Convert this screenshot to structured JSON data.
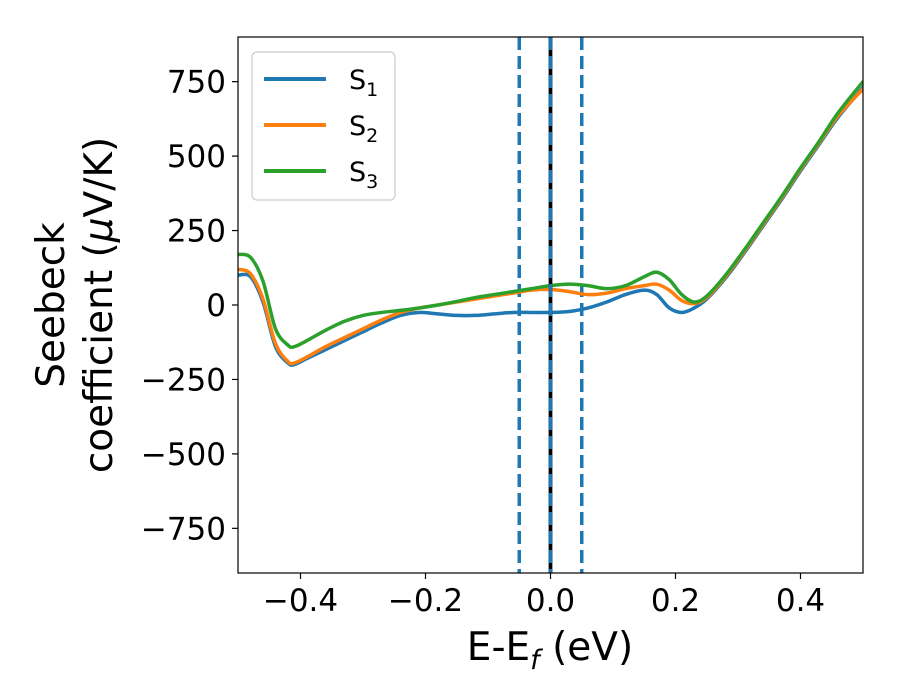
{
  "chart_data": {
    "type": "line",
    "xlabel": "E-E",
    "xlabel_subscript": "f",
    "xlabel_unit": " (eV)",
    "ylabel_line1": "Seebeck",
    "ylabel_line2_prefix": "coefficient  (",
    "ylabel_mu": "μ",
    "ylabel_line2_suffix": "V/K)",
    "xlim": [
      -0.5,
      0.5
    ],
    "ylim": [
      -900,
      900
    ],
    "xticks": [
      -0.4,
      -0.2,
      0.0,
      0.2,
      0.4
    ],
    "xtick_labels": [
      "−0.4",
      "−0.2",
      "0.0",
      "0.2",
      "0.4"
    ],
    "yticks": [
      750,
      500,
      250,
      0,
      -250,
      -500,
      -750
    ],
    "ytick_labels": [
      "750",
      "500",
      "250",
      "0",
      "−250",
      "−500",
      "−750"
    ],
    "grid": false,
    "legend_position": "top-left",
    "series": [
      {
        "name": "S",
        "subscript": "1",
        "color": "#1f77b4",
        "x": [
          -0.5,
          -0.48,
          -0.46,
          -0.44,
          -0.42,
          -0.41,
          -0.39,
          -0.36,
          -0.33,
          -0.3,
          -0.27,
          -0.24,
          -0.21,
          -0.18,
          -0.15,
          -0.12,
          -0.09,
          -0.06,
          -0.03,
          0.0,
          0.03,
          0.06,
          0.09,
          0.12,
          0.15,
          0.17,
          0.19,
          0.21,
          0.23,
          0.25,
          0.28,
          0.31,
          0.34,
          0.37,
          0.4,
          0.43,
          0.46,
          0.5
        ],
        "y": [
          100,
          95,
          10,
          -140,
          -195,
          -200,
          -180,
          -150,
          -120,
          -90,
          -60,
          -35,
          -25,
          -30,
          -35,
          -35,
          -30,
          -25,
          -25,
          -25,
          -22,
          -10,
          10,
          35,
          50,
          35,
          -10,
          -25,
          -10,
          20,
          90,
          175,
          265,
          355,
          450,
          540,
          630,
          730
        ]
      },
      {
        "name": "S",
        "subscript": "2",
        "color": "#ff7f0e",
        "x": [
          -0.5,
          -0.48,
          -0.46,
          -0.44,
          -0.42,
          -0.41,
          -0.39,
          -0.36,
          -0.33,
          -0.3,
          -0.27,
          -0.24,
          -0.21,
          -0.18,
          -0.15,
          -0.12,
          -0.09,
          -0.06,
          -0.03,
          0.0,
          0.03,
          0.06,
          0.09,
          0.12,
          0.15,
          0.17,
          0.19,
          0.21,
          0.23,
          0.25,
          0.28,
          0.31,
          0.34,
          0.37,
          0.4,
          0.43,
          0.46,
          0.5
        ],
        "y": [
          120,
          105,
          20,
          -130,
          -190,
          -195,
          -175,
          -140,
          -110,
          -80,
          -50,
          -25,
          -10,
          0,
          10,
          20,
          30,
          40,
          50,
          52,
          45,
          35,
          40,
          55,
          65,
          70,
          50,
          15,
          5,
          25,
          95,
          180,
          270,
          360,
          455,
          545,
          635,
          725
        ]
      },
      {
        "name": "S",
        "subscript": "3",
        "color": "#2ca02c",
        "x": [
          -0.5,
          -0.48,
          -0.46,
          -0.44,
          -0.42,
          -0.41,
          -0.39,
          -0.36,
          -0.33,
          -0.3,
          -0.27,
          -0.24,
          -0.21,
          -0.18,
          -0.15,
          -0.12,
          -0.09,
          -0.06,
          -0.03,
          0.0,
          0.03,
          0.06,
          0.09,
          0.12,
          0.15,
          0.17,
          0.19,
          0.21,
          0.23,
          0.25,
          0.28,
          0.31,
          0.34,
          0.37,
          0.4,
          0.43,
          0.46,
          0.5
        ],
        "y": [
          170,
          160,
          80,
          -80,
          -135,
          -140,
          -120,
          -85,
          -55,
          -35,
          -25,
          -18,
          -10,
          0,
          12,
          25,
          35,
          45,
          55,
          65,
          70,
          65,
          55,
          65,
          95,
          110,
          85,
          35,
          10,
          30,
          100,
          185,
          275,
          365,
          460,
          550,
          645,
          750
        ]
      }
    ],
    "vlines": [
      {
        "x": -0.05,
        "color": "#1f77b4",
        "style": "dashed"
      },
      {
        "x": 0.05,
        "color": "#1f77b4",
        "style": "dashed"
      },
      {
        "x": 0.0,
        "color": "#000000",
        "style": "solid"
      },
      {
        "x": 0.0,
        "color": "#1f77b4",
        "style": "dashed"
      }
    ]
  }
}
